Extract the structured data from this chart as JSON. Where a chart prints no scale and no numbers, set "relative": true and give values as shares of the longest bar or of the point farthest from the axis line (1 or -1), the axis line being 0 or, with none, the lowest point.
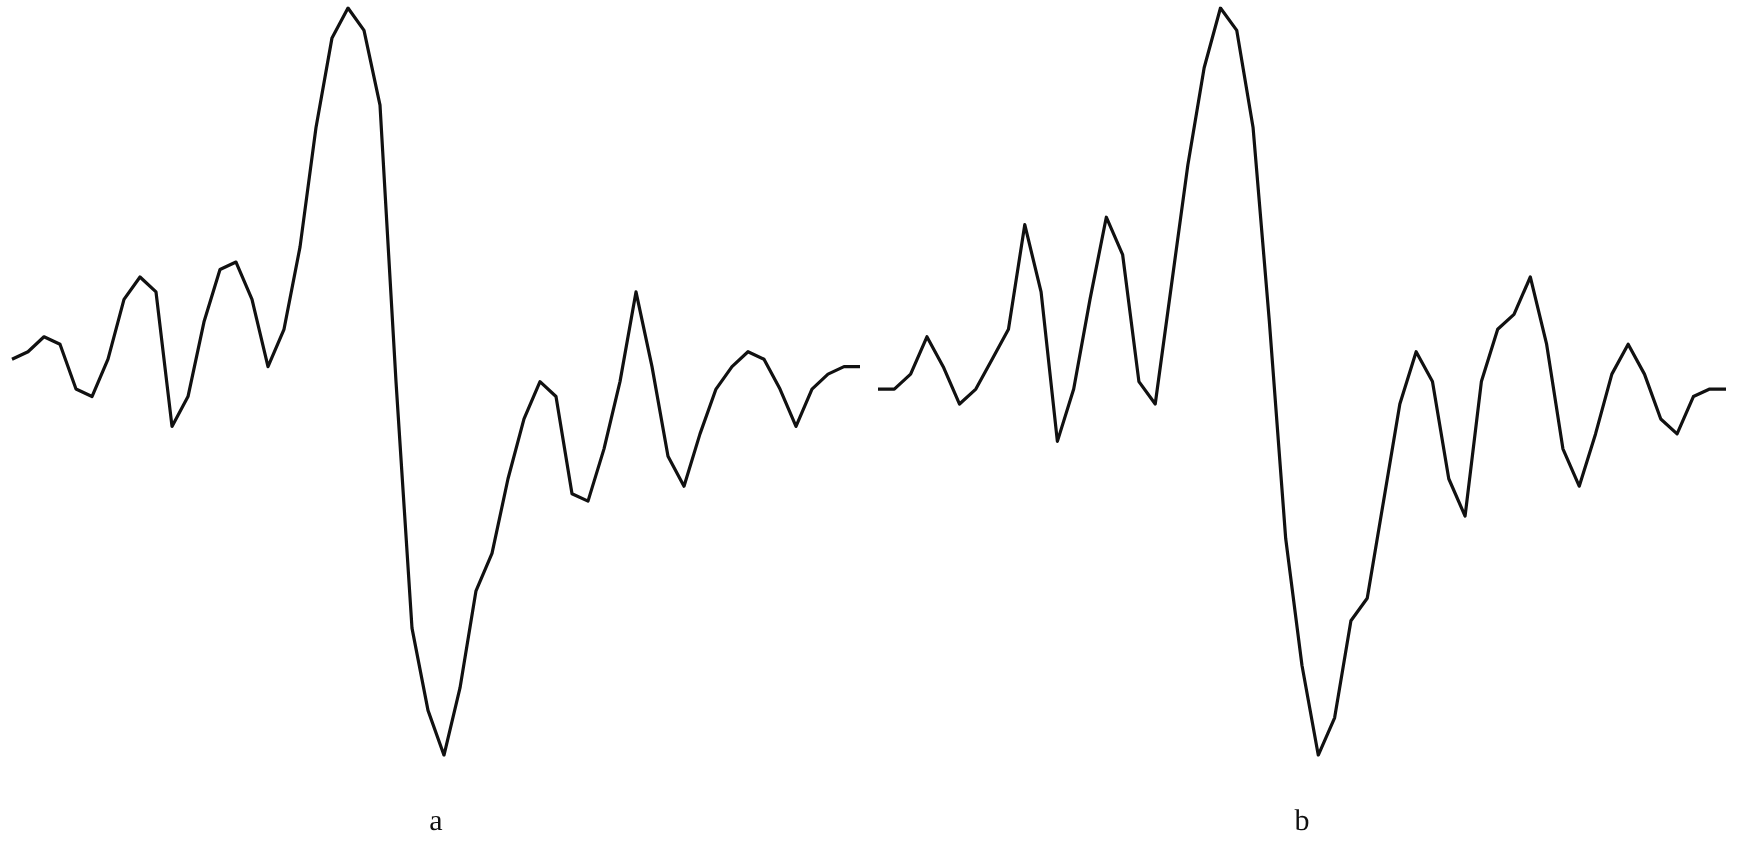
{
  "chart_data": [
    {
      "type": "line",
      "relative": true,
      "xlabel": "a",
      "marker": "none",
      "legend": false,
      "grid": false,
      "categories": [
        null,
        null,
        null,
        null,
        null,
        null,
        null,
        null,
        null,
        null,
        null,
        null,
        null,
        null,
        null,
        null,
        null,
        null,
        null,
        null,
        null,
        null,
        null,
        null,
        null,
        null,
        null,
        null,
        null,
        null,
        null,
        null,
        null,
        null,
        null,
        null,
        null,
        null,
        null,
        null,
        null,
        null,
        null,
        null,
        null,
        null,
        null,
        null,
        null,
        null,
        null,
        null,
        null,
        null
      ],
      "series": [
        {
          "color": "#111111",
          "values": [
            0.53,
            0.54,
            0.56,
            0.55,
            0.49,
            0.48,
            0.53,
            0.61,
            0.64,
            0.62,
            0.44,
            0.48,
            0.58,
            0.65,
            0.66,
            0.61,
            0.52,
            0.57,
            0.68,
            0.84,
            0.96,
            1,
            0.97,
            0.87,
            0.5,
            0.17,
            0.06,
            0,
            0.09,
            0.22,
            0.27,
            0.37,
            0.45,
            0.5,
            0.48,
            0.35,
            0.34,
            0.41,
            0.5,
            0.62,
            0.52,
            0.4,
            0.36,
            0.43,
            0.49,
            0.52,
            0.54,
            0.53,
            0.49,
            0.44,
            0.49,
            0.51,
            0.52,
            0.52
          ]
        }
      ]
    },
    {
      "type": "line",
      "relative": true,
      "xlabel": "b",
      "marker": "none",
      "legend": false,
      "grid": false,
      "categories": [
        null,
        null,
        null,
        null,
        null,
        null,
        null,
        null,
        null,
        null,
        null,
        null,
        null,
        null,
        null,
        null,
        null,
        null,
        null,
        null,
        null,
        null,
        null,
        null,
        null,
        null,
        null,
        null,
        null,
        null,
        null,
        null,
        null,
        null,
        null,
        null,
        null,
        null,
        null,
        null,
        null,
        null,
        null,
        null,
        null,
        null,
        null,
        null,
        null,
        null,
        null,
        null,
        null
      ],
      "series": [
        {
          "color": "#111111",
          "values": [
            0.49,
            0.49,
            0.51,
            0.56,
            0.52,
            0.47,
            0.49,
            0.53,
            0.57,
            0.71,
            0.62,
            0.42,
            0.49,
            0.61,
            0.72,
            0.67,
            0.5,
            0.47,
            0.63,
            0.79,
            0.92,
            1,
            0.97,
            0.84,
            0.58,
            0.29,
            0.12,
            0,
            0.05,
            0.18,
            0.21,
            0.34,
            0.47,
            0.54,
            0.5,
            0.37,
            0.32,
            0.5,
            0.57,
            0.59,
            0.64,
            0.55,
            0.41,
            0.36,
            0.43,
            0.51,
            0.55,
            0.51,
            0.45,
            0.43,
            0.48,
            0.49,
            0.49
          ]
        }
      ]
    }
  ]
}
